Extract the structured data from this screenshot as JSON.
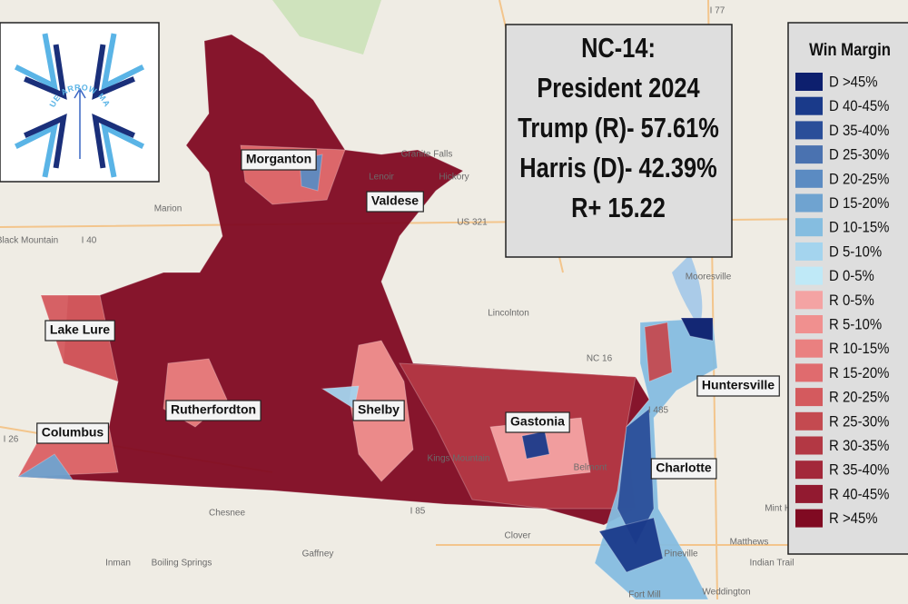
{
  "logo": {
    "text": "BLUE ARROW MAPS"
  },
  "title": {
    "lines": [
      "NC-14:",
      "President 2024",
      "Trump (R)- 57.61%",
      "Harris (D)- 42.39%",
      "R+ 15.22"
    ]
  },
  "legend": {
    "title": "Win Margin",
    "items": [
      {
        "label": "D >45%",
        "color": "#0d1f6e"
      },
      {
        "label": "D 40-45%",
        "color": "#1a3a8a"
      },
      {
        "label": "D 35-40%",
        "color": "#2a4e99"
      },
      {
        "label": "D 25-30%",
        "color": "#4a72b0"
      },
      {
        "label": "D 20-25%",
        "color": "#5b8bc2"
      },
      {
        "label": "D 15-20%",
        "color": "#6fa3d0"
      },
      {
        "label": "D 10-15%",
        "color": "#85bde0"
      },
      {
        "label": "D 5-10%",
        "color": "#a4d4ee"
      },
      {
        "label": "D 0-5%",
        "color": "#bfe9f7"
      },
      {
        "label": "R 0-5%",
        "color": "#f4a3a3"
      },
      {
        "label": "R 5-10%",
        "color": "#f0908f"
      },
      {
        "label": "R 10-15%",
        "color": "#ea8080"
      },
      {
        "label": "R 15-20%",
        "color": "#e06b6e"
      },
      {
        "label": "R 20-25%",
        "color": "#d45a5e"
      },
      {
        "label": "R 25-30%",
        "color": "#c44a50"
      },
      {
        "label": "R 30-35%",
        "color": "#b33844"
      },
      {
        "label": "R 35-40%",
        "color": "#a3283a"
      },
      {
        "label": "R 40-45%",
        "color": "#921a30"
      },
      {
        "label": "R >45%",
        "color": "#800a22"
      }
    ]
  },
  "cities": [
    "Morganton",
    "Valdese",
    "Lake Lure",
    "Rutherfordton",
    "Shelby",
    "Gastonia",
    "Columbus",
    "Charlotte",
    "Huntersville"
  ],
  "basemap_labels": [
    "Lenoir",
    "Hickory",
    "Granite Falls",
    "Marion",
    "Black Mountain",
    "Lincolnton",
    "Mooresville",
    "Kings Mountain",
    "Belmont",
    "Clover",
    "Gaffney",
    "Chesnee",
    "Inman",
    "Boiling Springs",
    "Pineville",
    "Matthews",
    "Indian Trail",
    "Weddington",
    "Fort Mill",
    "Mint Hill",
    "I 40",
    "I 85",
    "US 321",
    "NC 16",
    "I 485",
    "I 77",
    "I 26"
  ]
}
